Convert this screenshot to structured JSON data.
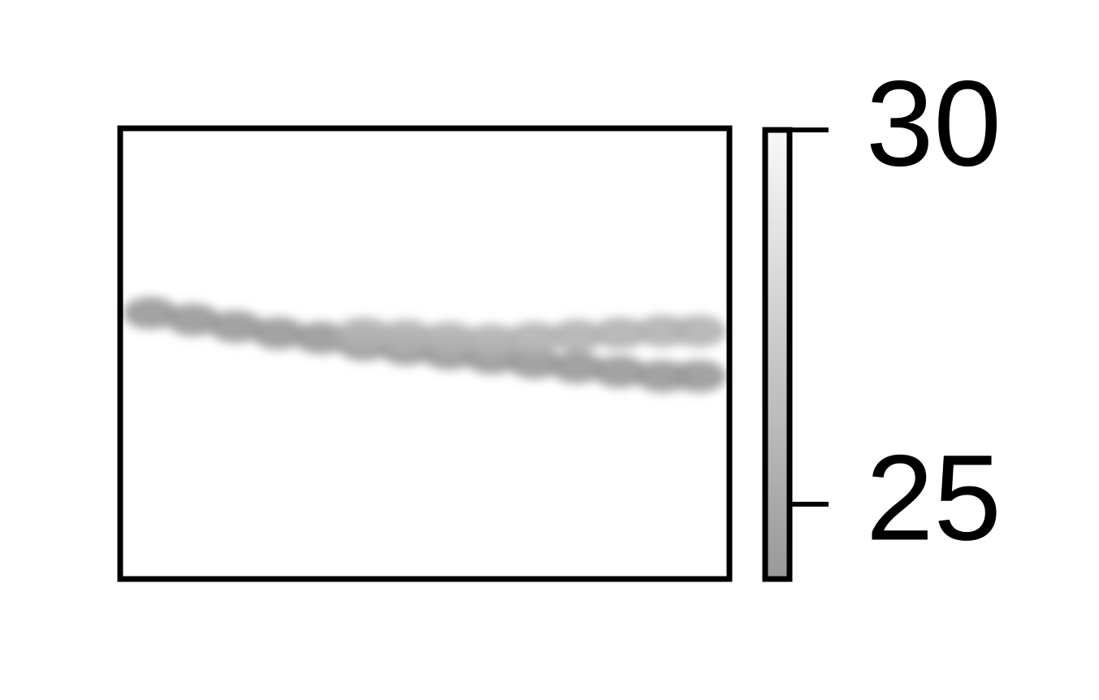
{
  "chart_data": {
    "type": "scatter",
    "xlim": [
      0,
      1
    ],
    "ylim": [
      0,
      1
    ],
    "x": [
      0.05,
      0.12,
      0.19,
      0.26,
      0.33,
      0.4,
      0.47,
      0.54,
      0.61,
      0.68,
      0.75,
      0.82,
      0.89,
      0.95,
      0.4,
      0.47,
      0.54,
      0.61,
      0.68,
      0.75,
      0.82,
      0.89,
      0.95
    ],
    "values": [
      0.59,
      0.575,
      0.56,
      0.545,
      0.535,
      0.52,
      0.51,
      0.5,
      0.49,
      0.48,
      0.47,
      0.46,
      0.45,
      0.45,
      0.545,
      0.54,
      0.535,
      0.53,
      0.535,
      0.54,
      0.545,
      0.55,
      0.55
    ],
    "color_values": [
      24,
      24,
      24,
      24,
      24,
      24,
      24,
      24,
      24,
      24,
      24,
      24,
      24,
      24,
      25.5,
      25.5,
      25.5,
      25.5,
      25.5,
      25.5,
      25.5,
      25.5,
      25.5
    ],
    "colormap": [
      "#999999",
      "#f8f8f8"
    ],
    "clim": [
      24,
      30
    ],
    "cticks": [
      25,
      30
    ]
  }
}
